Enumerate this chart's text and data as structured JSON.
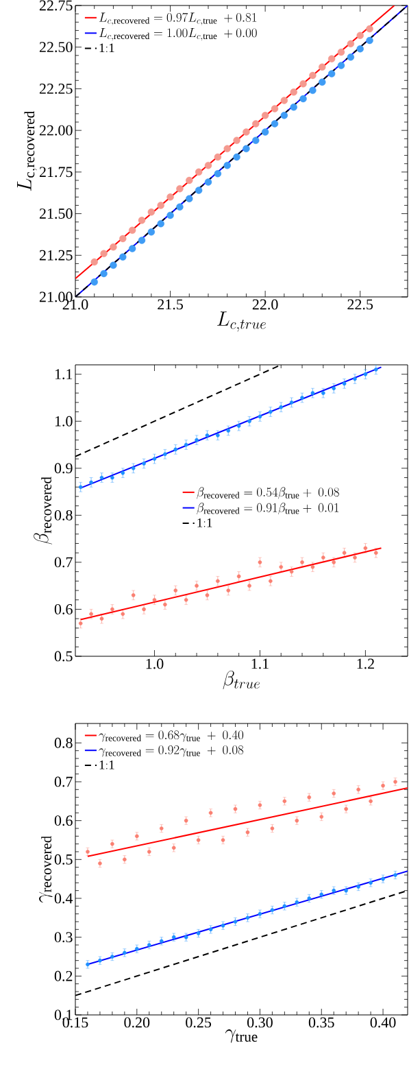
{
  "chart_data": [
    {
      "type": "scatter",
      "xlabel": "L_{c,true}",
      "ylabel": "L_{\\mathrm{c,recovered}}",
      "xlim": [
        21,
        22.75
      ],
      "ylim": [
        21,
        22.75
      ],
      "xticks": [
        {
          "value": 21,
          "label": "21.0"
        },
        21.5,
        {
          "value": 22,
          "label": "22.0"
        },
        22.5
      ],
      "yticks": [
        {
          "value": 21,
          "label": "21.00"
        },
        21.25,
        {
          "value": 21.5,
          "label": "21.50"
        },
        21.75,
        {
          "value": 22,
          "label": "22.00"
        },
        22.25,
        {
          "value": 22.5,
          "label": "22.50"
        },
        22.75
      ],
      "legend": "top left",
      "series": [
        {
          "color": "#f49a90",
          "x": [
            21.1,
            21.15,
            21.2,
            21.25,
            21.3,
            21.35,
            21.4,
            21.45,
            21.5,
            21.55,
            21.6,
            21.65,
            21.7,
            21.75,
            21.8,
            21.85,
            21.9,
            21.95,
            22.0,
            22.05,
            22.1,
            22.15,
            22.2,
            22.25,
            22.3,
            22.35,
            22.4,
            22.45,
            22.5,
            22.55
          ],
          "values": [
            21.21,
            21.26,
            21.3,
            21.35,
            21.4,
            21.46,
            21.51,
            21.55,
            21.6,
            21.65,
            21.7,
            21.75,
            21.79,
            21.84,
            21.89,
            21.94,
            21.99,
            22.04,
            22.09,
            22.13,
            22.18,
            22.23,
            22.28,
            22.33,
            22.38,
            22.43,
            22.47,
            22.52,
            22.57,
            22.61
          ]
        },
        {
          "color": "#3f9cf5",
          "x": [
            21.1,
            21.15,
            21.2,
            21.25,
            21.3,
            21.35,
            21.4,
            21.45,
            21.5,
            21.55,
            21.6,
            21.65,
            21.7,
            21.75,
            21.8,
            21.85,
            21.9,
            21.95,
            22.0,
            22.05,
            22.1,
            22.15,
            22.2,
            22.25,
            22.3,
            22.35,
            22.4,
            22.45,
            22.5,
            22.55
          ],
          "values": [
            21.09,
            21.14,
            21.19,
            21.24,
            21.29,
            21.34,
            21.39,
            21.44,
            21.49,
            21.54,
            21.59,
            21.64,
            21.69,
            21.74,
            21.79,
            21.84,
            21.89,
            21.94,
            21.99,
            22.04,
            22.09,
            22.14,
            22.19,
            22.24,
            22.29,
            22.34,
            22.39,
            22.44,
            22.49,
            22.54
          ]
        },
        {
          "type": "line",
          "marker": "none",
          "name": "L_{c,\\mathrm{recovered}} = 0.97L_{c,\\mathrm{true}}\\ +0.81",
          "color": "#ff0000",
          "line_style": "solid",
          "x": [
            21,
            22.68
          ],
          "values": [
            21.11,
            22.75
          ]
        },
        {
          "type": "line",
          "marker": "none",
          "name": "L_{c,\\mathrm{recovered}} = 1.00L_{c,\\mathrm{true}}\\ +0.00",
          "color": "#0000ff",
          "line_style": "solid",
          "x": [
            21,
            22.75
          ],
          "values": [
            21,
            22.75
          ]
        },
        {
          "type": "line",
          "marker": "none",
          "name": "\\mathrm{1{:}1}",
          "color": "#000000",
          "line_style": "dashed",
          "x": [
            21,
            22.75
          ],
          "values": [
            21,
            22.75
          ]
        }
      ]
    },
    {
      "type": "scatter",
      "xlabel": "\\beta_{true}",
      "ylabel": "\\beta_{\\mathrm{recovered}}",
      "xlim": [
        0.925,
        1.24
      ],
      "ylim": [
        0.5,
        1.12
      ],
      "xticks": [
        {
          "value": 1,
          "label": "1.0"
        },
        1.1,
        1.2
      ],
      "yticks": [
        0.5,
        0.6,
        0.7,
        0.8,
        0.9,
        {
          "value": 1,
          "label": "1.0"
        },
        1.1
      ],
      "legend": "center",
      "series": [
        {
          "color": "#fa8072",
          "x": [
            0.93,
            0.94,
            0.95,
            0.96,
            0.97,
            0.98,
            0.99,
            1.0,
            1.01,
            1.02,
            1.03,
            1.04,
            1.05,
            1.06,
            1.07,
            1.08,
            1.09,
            1.1,
            1.11,
            1.12,
            1.13,
            1.14,
            1.15,
            1.16,
            1.17,
            1.18,
            1.19,
            1.2,
            1.21
          ],
          "values": [
            0.57,
            0.59,
            0.58,
            0.6,
            0.59,
            0.63,
            0.6,
            0.62,
            0.61,
            0.64,
            0.62,
            0.65,
            0.63,
            0.66,
            0.64,
            0.67,
            0.65,
            0.7,
            0.66,
            0.69,
            0.68,
            0.7,
            0.69,
            0.71,
            0.7,
            0.72,
            0.71,
            0.73,
            0.72
          ],
          "errors": [
            0.01,
            0.01,
            0.01,
            0.01,
            0.01,
            0.01,
            0.01,
            0.01,
            0.01,
            0.01,
            0.01,
            0.01,
            0.01,
            0.01,
            0.01,
            0.01,
            0.01,
            0.01,
            0.01,
            0.01,
            0.01,
            0.01,
            0.01,
            0.01,
            0.01,
            0.01,
            0.01,
            0.01,
            0.01
          ]
        },
        {
          "color": "#1e90ff",
          "x": [
            0.93,
            0.94,
            0.95,
            0.96,
            0.97,
            0.98,
            0.99,
            1.0,
            1.01,
            1.02,
            1.03,
            1.04,
            1.05,
            1.06,
            1.07,
            1.08,
            1.09,
            1.1,
            1.11,
            1.12,
            1.13,
            1.14,
            1.15,
            1.16,
            1.17,
            1.18,
            1.19,
            1.2,
            1.21
          ],
          "values": [
            0.86,
            0.87,
            0.88,
            0.88,
            0.89,
            0.9,
            0.91,
            0.92,
            0.93,
            0.94,
            0.95,
            0.96,
            0.97,
            0.97,
            0.98,
            0.99,
            1.0,
            1.01,
            1.02,
            1.03,
            1.04,
            1.05,
            1.06,
            1.06,
            1.07,
            1.08,
            1.09,
            1.1,
            1.11
          ],
          "errors": [
            0.01,
            0.01,
            0.01,
            0.01,
            0.01,
            0.01,
            0.01,
            0.01,
            0.01,
            0.01,
            0.01,
            0.01,
            0.01,
            0.01,
            0.01,
            0.01,
            0.01,
            0.01,
            0.01,
            0.01,
            0.01,
            0.01,
            0.01,
            0.01,
            0.01,
            0.01,
            0.01,
            0.01,
            0.01
          ]
        },
        {
          "type": "line",
          "marker": "none",
          "name": "\\beta_{\\mathrm{recovered}} = 0.54\\beta_{\\mathrm{true}}+\\ 0.08",
          "color": "#ff0000",
          "line_style": "solid",
          "x": [
            0.93,
            1.215
          ],
          "values": [
            0.578,
            0.73
          ]
        },
        {
          "type": "line",
          "marker": "none",
          "name": "\\beta_{\\mathrm{recovered}} = 0.91\\beta_{\\mathrm{true}}+\\ 0.01",
          "color": "#0000ff",
          "line_style": "solid",
          "x": [
            0.93,
            1.215
          ],
          "values": [
            0.858,
            1.115
          ]
        },
        {
          "type": "line",
          "marker": "none",
          "name": "\\mathrm{1{:}1}",
          "color": "#000000",
          "line_style": "dashed",
          "x": [
            0.925,
            1.12
          ],
          "values": [
            0.925,
            1.12
          ]
        }
      ]
    },
    {
      "type": "scatter",
      "xlabel": "\\gamma_{\\mathrm{true}}",
      "ylabel": "\\gamma_{\\mathrm{recovered}}",
      "xlim": [
        0.15,
        0.42
      ],
      "ylim": [
        0.1,
        0.85
      ],
      "xticks": [
        0.15,
        {
          "value": 0.2,
          "label": "0.20"
        },
        0.25,
        {
          "value": 0.3,
          "label": "0.30"
        },
        0.35,
        {
          "value": 0.4,
          "label": "0.40"
        }
      ],
      "yticks": [
        0.1,
        0.2,
        0.3,
        0.4,
        0.5,
        0.6,
        0.7,
        0.8
      ],
      "legend": "top left",
      "series": [
        {
          "color": "#fa8072",
          "x": [
            0.16,
            0.17,
            0.18,
            0.19,
            0.2,
            0.21,
            0.22,
            0.23,
            0.24,
            0.25,
            0.26,
            0.27,
            0.28,
            0.29,
            0.3,
            0.31,
            0.32,
            0.33,
            0.34,
            0.35,
            0.36,
            0.37,
            0.38,
            0.39,
            0.4,
            0.41
          ],
          "values": [
            0.52,
            0.49,
            0.54,
            0.5,
            0.56,
            0.52,
            0.58,
            0.53,
            0.6,
            0.55,
            0.62,
            0.55,
            0.63,
            0.57,
            0.64,
            0.58,
            0.65,
            0.6,
            0.66,
            0.61,
            0.67,
            0.63,
            0.68,
            0.65,
            0.69,
            0.7
          ],
          "errors": [
            0.01,
            0.01,
            0.01,
            0.01,
            0.01,
            0.01,
            0.01,
            0.01,
            0.01,
            0.01,
            0.01,
            0.01,
            0.01,
            0.01,
            0.01,
            0.01,
            0.01,
            0.01,
            0.01,
            0.01,
            0.01,
            0.01,
            0.01,
            0.01,
            0.01,
            0.01
          ]
        },
        {
          "color": "#1e90ff",
          "x": [
            0.16,
            0.17,
            0.18,
            0.19,
            0.2,
            0.21,
            0.22,
            0.23,
            0.24,
            0.25,
            0.26,
            0.27,
            0.28,
            0.29,
            0.3,
            0.31,
            0.32,
            0.33,
            0.34,
            0.35,
            0.36,
            0.37,
            0.38,
            0.39,
            0.4,
            0.41
          ],
          "values": [
            0.23,
            0.24,
            0.25,
            0.26,
            0.27,
            0.28,
            0.29,
            0.3,
            0.3,
            0.31,
            0.32,
            0.33,
            0.34,
            0.35,
            0.36,
            0.37,
            0.38,
            0.39,
            0.4,
            0.41,
            0.42,
            0.42,
            0.43,
            0.44,
            0.45,
            0.46
          ],
          "errors": [
            0.01,
            0.01,
            0.01,
            0.01,
            0.01,
            0.01,
            0.01,
            0.01,
            0.01,
            0.01,
            0.01,
            0.01,
            0.01,
            0.01,
            0.01,
            0.01,
            0.01,
            0.01,
            0.01,
            0.01,
            0.01,
            0.01,
            0.01,
            0.01,
            0.01,
            0.01
          ]
        },
        {
          "type": "line",
          "marker": "none",
          "name": "\\gamma_{\\mathrm{recovered}} =0.68\\gamma_{\\mathrm{true}}\\ +\\ 0.40",
          "color": "#ff0000",
          "line_style": "solid",
          "x": [
            0.16,
            0.42
          ],
          "values": [
            0.508,
            0.684
          ]
        },
        {
          "type": "line",
          "marker": "none",
          "name": "\\gamma_{\\mathrm{recovered}} =0.92\\gamma_{\\mathrm{true}}\\ +\\ 0.08",
          "color": "#0000ff",
          "line_style": "solid",
          "x": [
            0.16,
            0.42
          ],
          "values": [
            0.23,
            0.47
          ]
        },
        {
          "type": "line",
          "marker": "none",
          "name": "\\mathrm{1{:}1}",
          "color": "#000000",
          "line_style": "dashed",
          "x": [
            0.15,
            0.42
          ],
          "values": [
            0.15,
            0.42
          ]
        }
      ]
    }
  ]
}
